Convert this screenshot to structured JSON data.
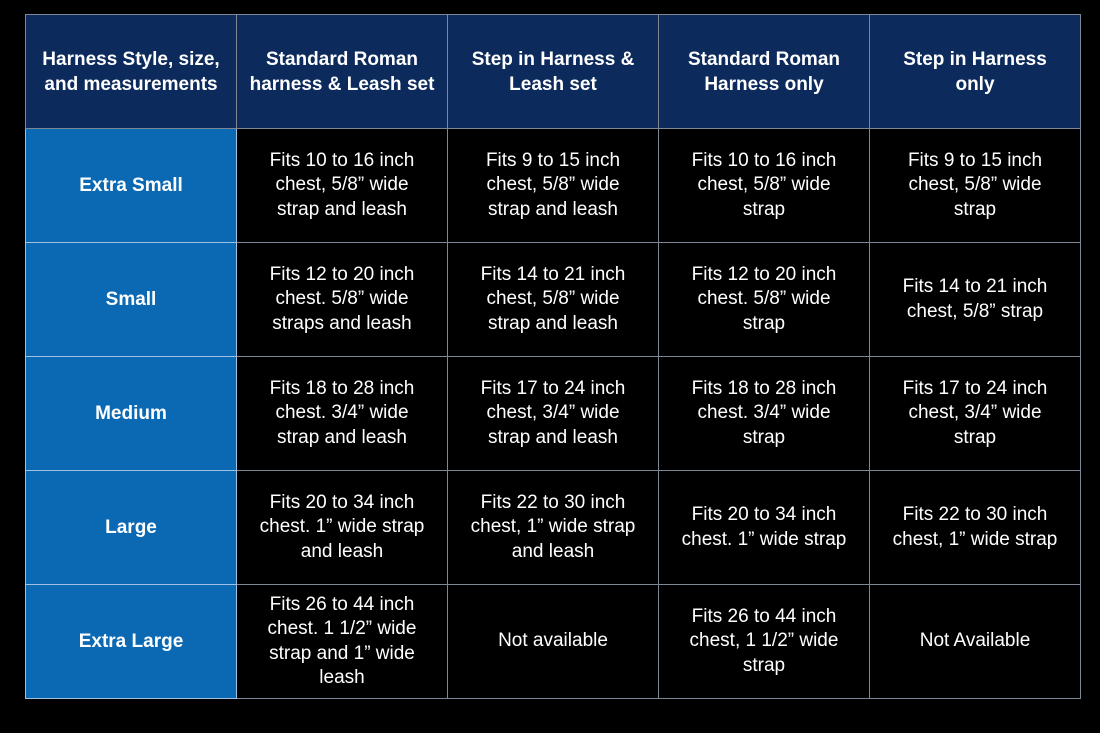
{
  "colors": {
    "header_bg": "#0c2a5c",
    "row_header_bg": "#0b69b4",
    "cell_bg": "#000000",
    "text": "#ffffff"
  },
  "headers": [
    "Harness Style, size,\nand measurements",
    "Standard Roman\nharness & Leash set",
    "Step in Harness &\nLeash set",
    "Standard Roman\nHarness only",
    "Step in Harness\nonly"
  ],
  "rows": [
    {
      "size": "Extra Small",
      "cells": [
        "Fits 10 to 16 inch\nchest, 5/8” wide\nstrap and leash",
        "Fits 9 to 15 inch\nchest, 5/8” wide\nstrap and leash",
        "Fits 10 to 16 inch\nchest, 5/8” wide\nstrap",
        "Fits 9 to 15 inch\nchest, 5/8” wide\nstrap"
      ]
    },
    {
      "size": "Small",
      "cells": [
        "Fits 12 to 20 inch\nchest. 5/8” wide\nstraps and leash",
        "Fits 14 to 21 inch\nchest, 5/8” wide\nstrap and leash",
        "Fits 12 to 20 inch\nchest. 5/8” wide\nstrap",
        "Fits 14 to 21 inch\nchest, 5/8” strap"
      ]
    },
    {
      "size": "Medium",
      "cells": [
        "Fits 18 to 28 inch\nchest. 3/4” wide\nstrap and leash",
        "Fits 17 to 24 inch\nchest, 3/4” wide\nstrap and leash",
        "Fits 18 to 28 inch\nchest. 3/4” wide\nstrap",
        "Fits 17 to 24 inch\nchest, 3/4” wide\nstrap"
      ]
    },
    {
      "size": "Large",
      "cells": [
        "Fits 20 to 34 inch\nchest. 1” wide strap\nand leash",
        "Fits 22 to 30 inch\nchest, 1” wide strap\nand leash",
        "Fits 20 to 34 inch\nchest. 1” wide strap",
        "Fits 22 to 30 inch\nchest, 1” wide strap"
      ]
    },
    {
      "size": "Extra Large",
      "cells": [
        "Fits 26 to 44 inch\nchest. 1 1/2” wide\nstrap and 1” wide\nleash",
        "Not available",
        "Fits 26 to 44 inch\nchest, 1 1/2” wide\nstrap",
        "Not Available"
      ]
    }
  ]
}
